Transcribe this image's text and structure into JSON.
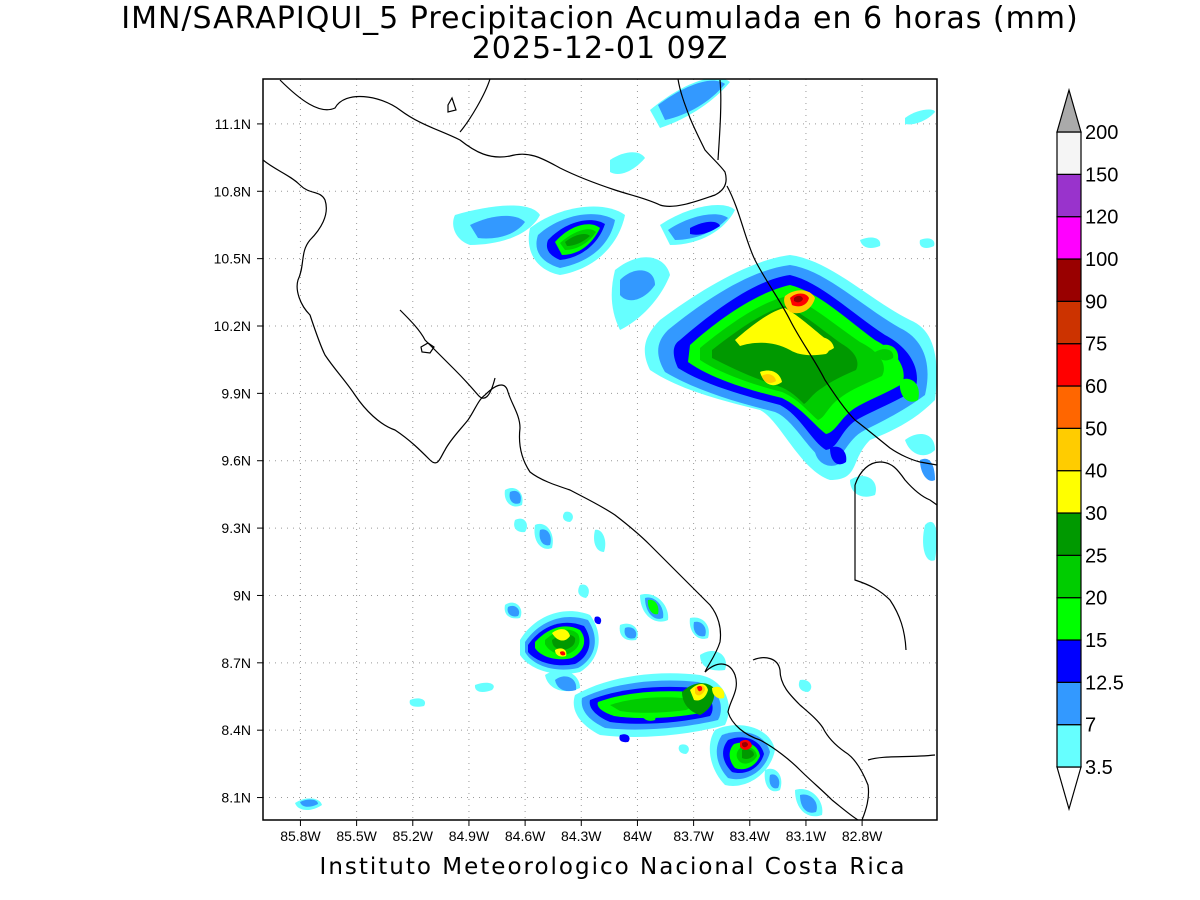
{
  "title": "IMN/SARAPIQUI_5 Precipitacion Acumulada en 6 horas (mm)",
  "subtitle": "2025-12-01 09Z",
  "credit": "Instituto Meteorologico Nacional Costa Rica",
  "map": {
    "lon_range": [
      -86.0,
      -82.4
    ],
    "lat_range": [
      8.0,
      11.3
    ],
    "lat_ticks": [
      "11.1N",
      "10.8N",
      "10.5N",
      "10.2N",
      "9.9N",
      "9.6N",
      "9.3N",
      "9N",
      "8.7N",
      "8.4N",
      "8.1N"
    ],
    "lat_values": [
      11.1,
      10.8,
      10.5,
      10.2,
      9.9,
      9.6,
      9.3,
      9.0,
      8.7,
      8.4,
      8.1
    ],
    "lon_ticks": [
      "85.8W",
      "85.5W",
      "85.2W",
      "84.9W",
      "84.6W",
      "84.3W",
      "84W",
      "83.7W",
      "83.4W",
      "83.1W",
      "82.8W"
    ],
    "lon_values": [
      -85.8,
      -85.5,
      -85.2,
      -84.9,
      -84.6,
      -84.3,
      -84.0,
      -83.7,
      -83.4,
      -83.1,
      -82.8
    ],
    "grid": "dotted"
  },
  "colorbar": {
    "levels": [
      "3.5",
      "7",
      "12.5",
      "15",
      "20",
      "25",
      "30",
      "40",
      "50",
      "60",
      "75",
      "90",
      "100",
      "120",
      "150",
      "200"
    ],
    "colors": [
      "#66ffff",
      "#3399ff",
      "#0000ff",
      "#00ff00",
      "#00cc00",
      "#009900",
      "#ffff00",
      "#ffcc00",
      "#ff6600",
      "#ff0000",
      "#cc3300",
      "#990000",
      "#ff00ff",
      "#9933cc",
      "#f5f5f5",
      "#aaaaaa"
    ]
  }
}
